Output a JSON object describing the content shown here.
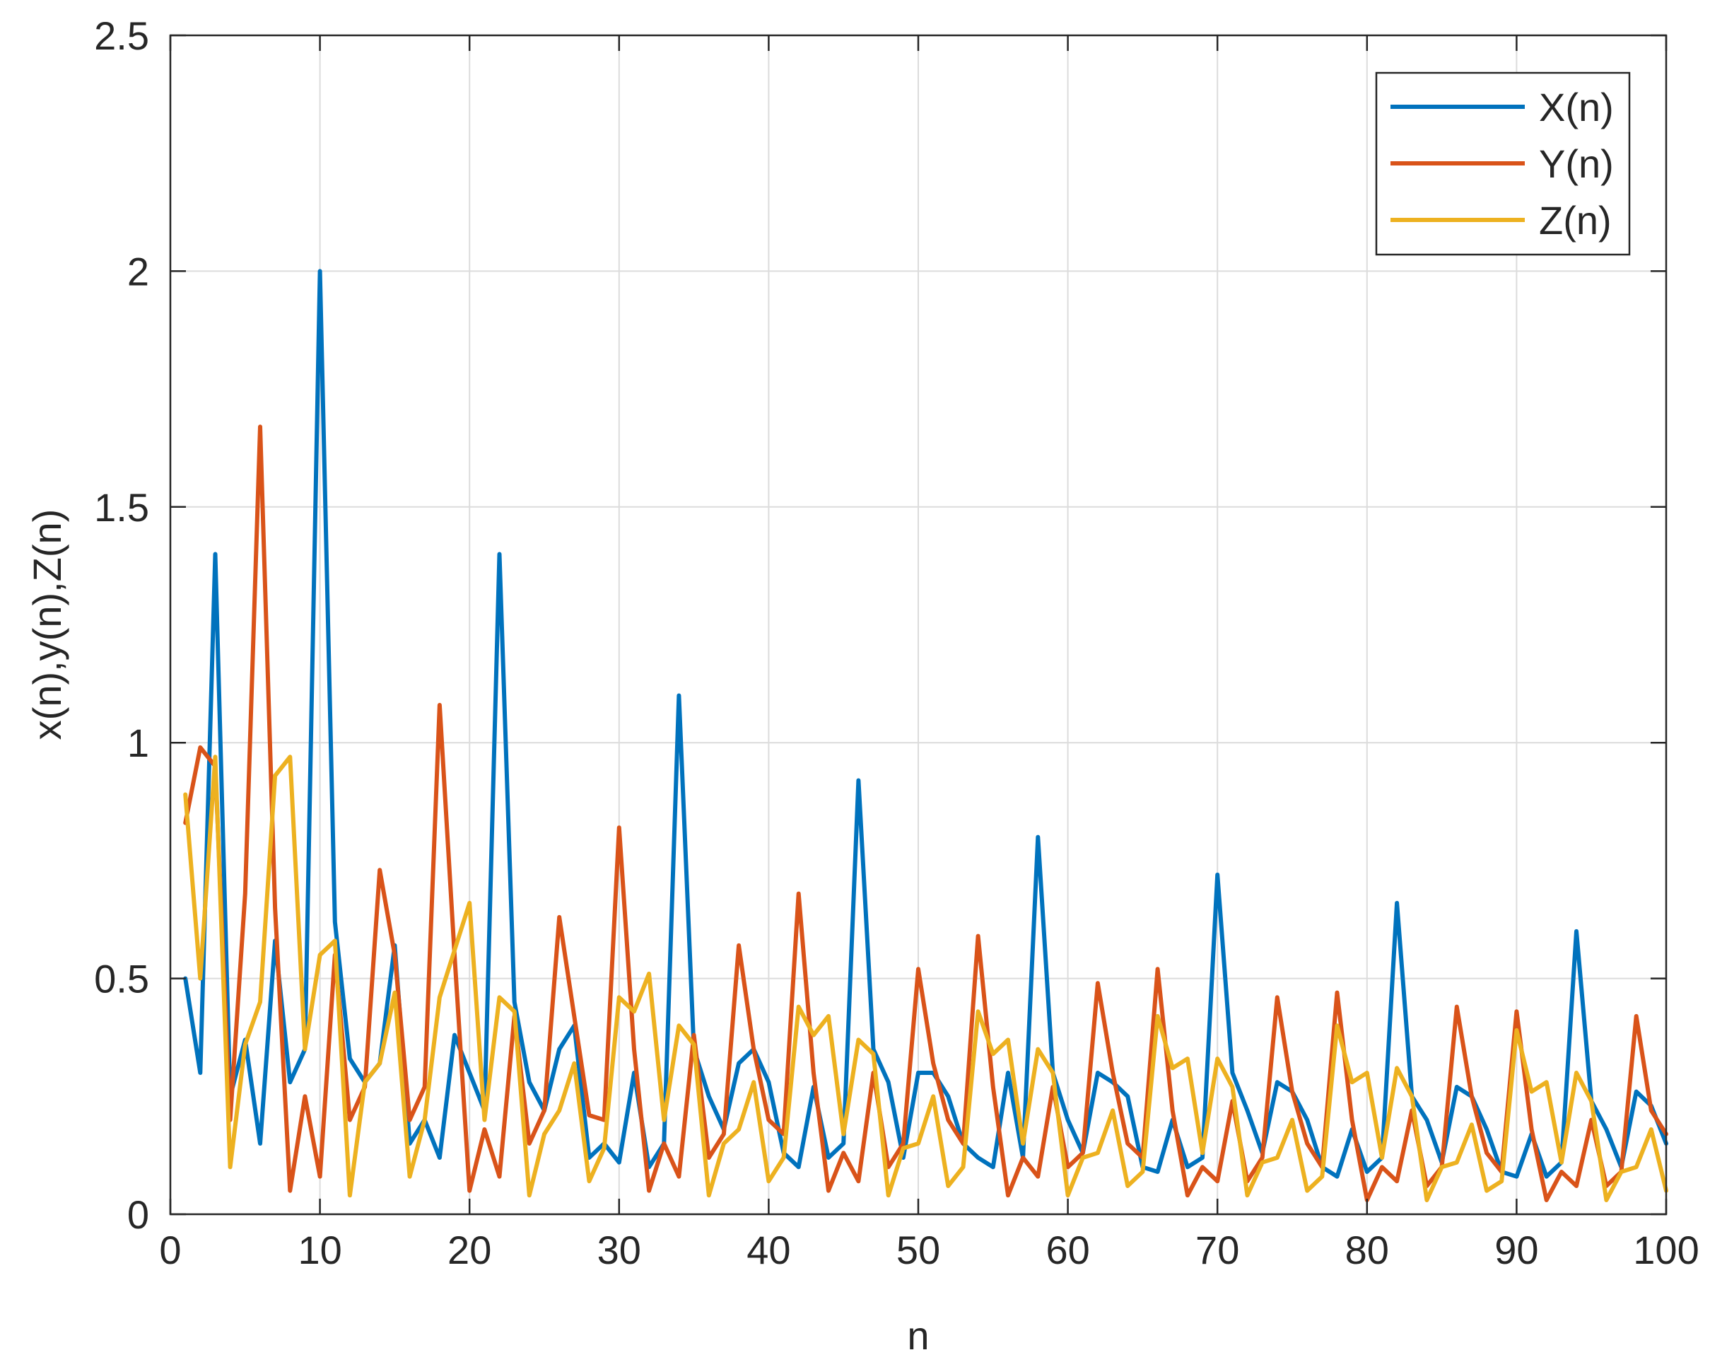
{
  "chart_data": {
    "type": "line",
    "title": "",
    "xlabel": "n",
    "ylabel": "x(n),y(n),Z(n)",
    "xlim": [
      0,
      100
    ],
    "ylim": [
      0,
      2.5
    ],
    "xticks": [
      0,
      10,
      20,
      30,
      40,
      50,
      60,
      70,
      80,
      90,
      100
    ],
    "yticks": [
      0,
      0.5,
      1,
      1.5,
      2,
      2.5
    ],
    "ytick_labels": [
      "0",
      "0.5",
      "1",
      "1.5",
      "2",
      "2.5"
    ],
    "grid": true,
    "legend_position": "top-right",
    "x": [
      1,
      2,
      3,
      4,
      5,
      6,
      7,
      8,
      9,
      10,
      11,
      12,
      13,
      14,
      15,
      16,
      17,
      18,
      19,
      20,
      21,
      22,
      23,
      24,
      25,
      26,
      27,
      28,
      29,
      30,
      31,
      32,
      33,
      34,
      35,
      36,
      37,
      38,
      39,
      40,
      41,
      42,
      43,
      44,
      45,
      46,
      47,
      48,
      49,
      50,
      51,
      52,
      53,
      54,
      55,
      56,
      57,
      58,
      59,
      60,
      61,
      62,
      63,
      64,
      65,
      66,
      67,
      68,
      69,
      70,
      71,
      72,
      73,
      74,
      75,
      76,
      77,
      78,
      79,
      80,
      81,
      82,
      83,
      84,
      85,
      86,
      87,
      88,
      89,
      90,
      91,
      92,
      93,
      94,
      95,
      96,
      97,
      98,
      99,
      100
    ],
    "series": [
      {
        "name": "X(n)",
        "color": "#0072BD",
        "values": [
          0.5,
          0.3,
          1.4,
          0.25,
          0.37,
          0.15,
          0.58,
          0.28,
          0.35,
          2.0,
          0.62,
          0.33,
          0.28,
          0.32,
          0.57,
          0.15,
          0.2,
          0.12,
          0.38,
          0.3,
          0.22,
          1.4,
          0.45,
          0.28,
          0.22,
          0.35,
          0.4,
          0.12,
          0.15,
          0.11,
          0.3,
          0.1,
          0.15,
          1.1,
          0.35,
          0.25,
          0.18,
          0.32,
          0.35,
          0.28,
          0.13,
          0.1,
          0.27,
          0.12,
          0.15,
          0.92,
          0.35,
          0.28,
          0.12,
          0.3,
          0.3,
          0.25,
          0.15,
          0.12,
          0.1,
          0.3,
          0.12,
          0.8,
          0.3,
          0.2,
          0.13,
          0.3,
          0.28,
          0.25,
          0.1,
          0.09,
          0.2,
          0.1,
          0.12,
          0.72,
          0.3,
          0.22,
          0.13,
          0.28,
          0.26,
          0.2,
          0.1,
          0.08,
          0.18,
          0.09,
          0.12,
          0.66,
          0.25,
          0.2,
          0.11,
          0.27,
          0.25,
          0.18,
          0.09,
          0.08,
          0.17,
          0.08,
          0.11,
          0.6,
          0.24,
          0.18,
          0.1,
          0.26,
          0.23,
          0.15
        ]
      },
      {
        "name": "Y(n)",
        "color": "#D95319",
        "values": [
          0.83,
          0.99,
          0.95,
          0.2,
          0.68,
          1.67,
          0.65,
          0.05,
          0.25,
          0.08,
          0.55,
          0.2,
          0.27,
          0.73,
          0.55,
          0.2,
          0.27,
          1.08,
          0.55,
          0.05,
          0.18,
          0.08,
          0.42,
          0.15,
          0.22,
          0.63,
          0.42,
          0.21,
          0.2,
          0.82,
          0.35,
          0.05,
          0.15,
          0.08,
          0.38,
          0.12,
          0.17,
          0.57,
          0.35,
          0.2,
          0.17,
          0.68,
          0.3,
          0.05,
          0.13,
          0.07,
          0.3,
          0.1,
          0.15,
          0.52,
          0.32,
          0.2,
          0.15,
          0.59,
          0.27,
          0.04,
          0.12,
          0.08,
          0.27,
          0.1,
          0.13,
          0.49,
          0.3,
          0.15,
          0.12,
          0.52,
          0.22,
          0.04,
          0.1,
          0.07,
          0.24,
          0.07,
          0.12,
          0.46,
          0.26,
          0.15,
          0.1,
          0.47,
          0.2,
          0.03,
          0.1,
          0.07,
          0.22,
          0.06,
          0.1,
          0.44,
          0.25,
          0.13,
          0.09,
          0.43,
          0.18,
          0.03,
          0.09,
          0.06,
          0.2,
          0.06,
          0.09,
          0.42,
          0.22,
          0.17
        ]
      },
      {
        "name": "Z(n)",
        "color": "#EDB120",
        "values": [
          0.89,
          0.5,
          0.97,
          0.1,
          0.36,
          0.45,
          0.93,
          0.97,
          0.35,
          0.55,
          0.58,
          0.04,
          0.28,
          0.32,
          0.47,
          0.08,
          0.2,
          0.46,
          0.56,
          0.66,
          0.2,
          0.46,
          0.43,
          0.04,
          0.17,
          0.22,
          0.32,
          0.07,
          0.14,
          0.46,
          0.43,
          0.51,
          0.2,
          0.4,
          0.36,
          0.04,
          0.15,
          0.18,
          0.28,
          0.07,
          0.12,
          0.44,
          0.38,
          0.42,
          0.17,
          0.37,
          0.34,
          0.04,
          0.14,
          0.15,
          0.25,
          0.06,
          0.1,
          0.43,
          0.34,
          0.37,
          0.15,
          0.35,
          0.3,
          0.04,
          0.12,
          0.13,
          0.22,
          0.06,
          0.09,
          0.42,
          0.31,
          0.33,
          0.13,
          0.33,
          0.27,
          0.04,
          0.11,
          0.12,
          0.2,
          0.05,
          0.08,
          0.4,
          0.28,
          0.3,
          0.12,
          0.31,
          0.25,
          0.03,
          0.1,
          0.11,
          0.19,
          0.05,
          0.07,
          0.39,
          0.26,
          0.28,
          0.11,
          0.3,
          0.24,
          0.03,
          0.09,
          0.1,
          0.18,
          0.05
        ]
      }
    ]
  }
}
